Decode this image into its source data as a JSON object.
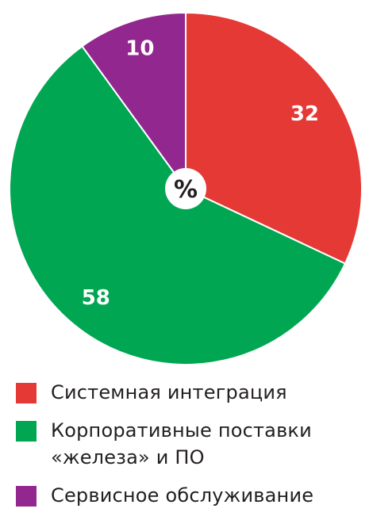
{
  "chart_data": {
    "type": "pie",
    "center_label": "%",
    "slices": [
      {
        "label": "Системная интеграция",
        "value": 32,
        "value_label": "32",
        "color": "#e53935"
      },
      {
        "label": "Корпоративные поставки «железа» и ПО",
        "value": 58,
        "value_label": "58",
        "color": "#00a651"
      },
      {
        "label": "Сервисное обслуживание",
        "value": 10,
        "value_label": "10",
        "color": "#92278f"
      }
    ],
    "legend_position": "bottom"
  },
  "legend": {
    "items": [
      {
        "label": "Системная интеграция",
        "color": "#e53935"
      },
      {
        "label": "Корпоративные поставки «железа» и ПО",
        "color": "#00a651"
      },
      {
        "label": "Сервисное обслуживание",
        "color": "#92278f"
      }
    ]
  }
}
